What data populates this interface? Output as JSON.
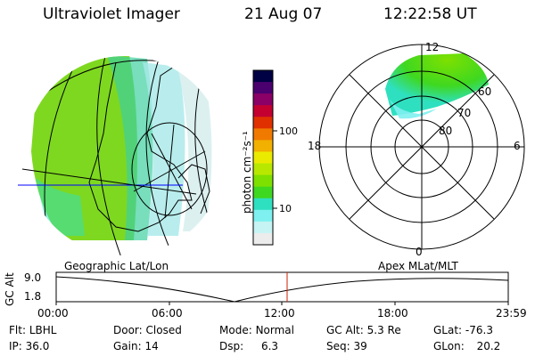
{
  "header": {
    "instrument": "Ultraviolet Imager",
    "date": "21 Aug 07",
    "time": "12:22:58 UT"
  },
  "colorbar": {
    "unit_label": "photon cm⁻²s⁻¹",
    "ticks": [
      "100",
      "10"
    ],
    "colors": [
      "#000044",
      "#4b0070",
      "#8a0066",
      "#c40030",
      "#e03000",
      "#f07a00",
      "#f2b000",
      "#eaea00",
      "#b8e800",
      "#7ee000",
      "#3fd820",
      "#2ee0c0",
      "#7ef0f0",
      "#c6f4f4",
      "#ececec"
    ]
  },
  "polar_plot": {
    "rings": [
      "60",
      "70",
      "80"
    ],
    "hours": {
      "top": "12",
      "left": "18",
      "right": "6",
      "bottom": "0"
    }
  },
  "timeline": {
    "left_title": "Geographic Lat/Lon",
    "right_title": "Apex MLat/MLT",
    "y_axis": "GC Alt",
    "y_top": "9.0",
    "y_bottom": "1.8",
    "time_ticks": [
      "00:00",
      "06:00",
      "12:00",
      "18:00",
      "23:59"
    ]
  },
  "status": {
    "flt_label": "Flt:",
    "flt_value": "LBHL",
    "door_label": "Door:",
    "door_value": "Closed",
    "mode_label": "Mode:",
    "mode_value": "Normal",
    "gcalt_label": "GC Alt:",
    "gcalt_value": "5.3 Re",
    "glat_label": "GLat:",
    "glat_value": "-76.3",
    "ip_label": "IP:",
    "ip_value": "36.0",
    "gain_label": "Gain:",
    "gain_value": "14",
    "dsp_label": "Dsp:",
    "dsp_value": "6.3",
    "seq_label": "Seq:",
    "seq_value": "39",
    "glon_label": "GLon:",
    "glon_value": "20.2"
  }
}
